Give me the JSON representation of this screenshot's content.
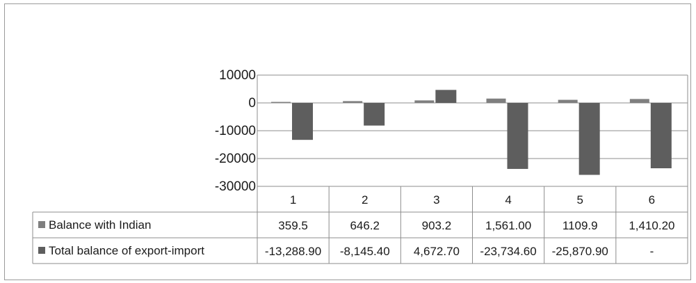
{
  "chart_data": {
    "type": "bar",
    "categories": [
      "1",
      "2",
      "3",
      "4",
      "5",
      "6"
    ],
    "y_ticks": [
      "10000",
      "0",
      "-10000",
      "-20000",
      "-30000"
    ],
    "ylim": [
      -30000,
      10000
    ],
    "grid": true,
    "legend_position": "data-table-left",
    "series": [
      {
        "name": "Balance with Indian",
        "color": "#7f7f7f",
        "values": [
          359.5,
          646.2,
          903.2,
          1561.0,
          1109.9,
          1410.2
        ],
        "labels": [
          "359.5",
          "646.2",
          "903.2",
          "1,561.00",
          "1109.9",
          "1,410.20"
        ]
      },
      {
        "name": "Total balance of export-import",
        "color": "#5e5e5e",
        "values": [
          -13288.9,
          -8145.4,
          4672.7,
          -23734.6,
          -25870.9,
          -23500
        ],
        "labels": [
          "-13,288.90",
          "-8,145.40",
          "4,672.70",
          "-23,734.60",
          "-25,870.90",
          "-"
        ]
      }
    ]
  }
}
